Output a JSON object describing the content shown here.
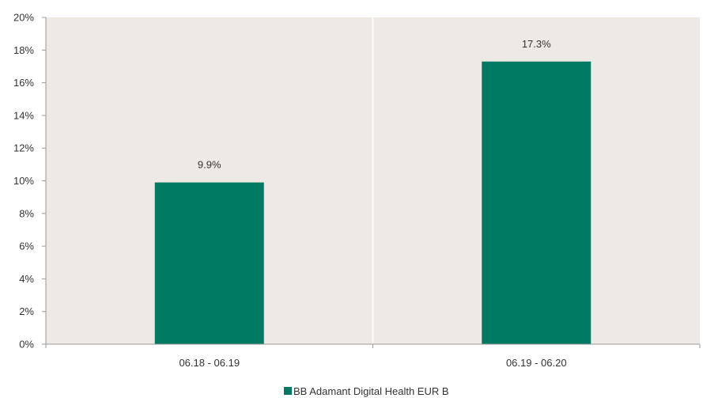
{
  "chart_data": {
    "type": "bar",
    "categories": [
      "06.18 - 06.19",
      "06.19 - 06.20"
    ],
    "series": [
      {
        "name": "BB Adamant Digital Health EUR B",
        "values": [
          9.9,
          17.3
        ],
        "labels": [
          "9.9%",
          "17.3%"
        ]
      }
    ],
    "ylim": [
      0,
      20
    ],
    "yticks": [
      0,
      2,
      4,
      6,
      8,
      10,
      12,
      14,
      16,
      18,
      20
    ],
    "ytick_labels": [
      "0%",
      "2%",
      "4%",
      "6%",
      "8%",
      "10%",
      "12%",
      "14%",
      "16%",
      "18%",
      "20%"
    ],
    "legend_position": "bottom",
    "colors": {
      "bar": "#007A63",
      "plot_background": "#EDEAE5",
      "divider": "#FFFFFF",
      "axis": "#999999"
    }
  }
}
